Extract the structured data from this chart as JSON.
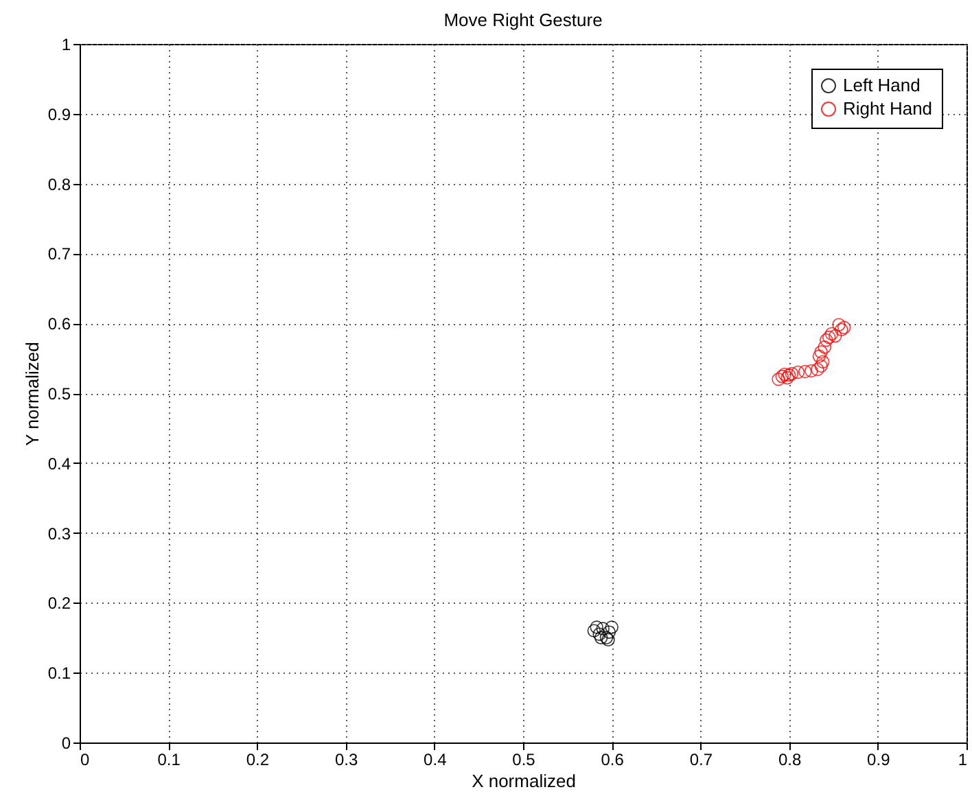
{
  "chart_data": {
    "type": "scatter",
    "title": "Move Right Gesture",
    "xlabel": "X normalized",
    "ylabel": "Y normalized",
    "xlim": [
      0,
      1
    ],
    "ylim": [
      0,
      1
    ],
    "xticks": [
      0,
      0.1,
      0.2,
      0.3,
      0.4,
      0.5,
      0.6,
      0.7,
      0.8,
      0.9,
      1
    ],
    "yticks": [
      0,
      0.1,
      0.2,
      0.3,
      0.4,
      0.5,
      0.6,
      0.7,
      0.8,
      0.9,
      1
    ],
    "grid": true,
    "legend": "top right",
    "marker": "circle",
    "series": [
      {
        "name": "Left Hand",
        "color": "#000000",
        "x": [
          0.58,
          0.586,
          0.59,
          0.594,
          0.597,
          0.6,
          0.588,
          0.583,
          0.596
        ],
        "values": [
          0.16,
          0.155,
          0.163,
          0.15,
          0.158,
          0.165,
          0.15,
          0.165,
          0.147
        ]
      },
      {
        "name": "Right Hand",
        "color": "#ff0000",
        "x": [
          0.788,
          0.792,
          0.795,
          0.798,
          0.8,
          0.803,
          0.81,
          0.818,
          0.825,
          0.832,
          0.836,
          0.838,
          0.834,
          0.836,
          0.84,
          0.842,
          0.845,
          0.848,
          0.852,
          0.856,
          0.859,
          0.862
        ],
        "values": [
          0.52,
          0.524,
          0.527,
          0.522,
          0.526,
          0.528,
          0.53,
          0.531,
          0.532,
          0.534,
          0.539,
          0.545,
          0.553,
          0.559,
          0.566,
          0.576,
          0.58,
          0.585,
          0.582,
          0.598,
          0.591,
          0.594
        ]
      }
    ]
  }
}
